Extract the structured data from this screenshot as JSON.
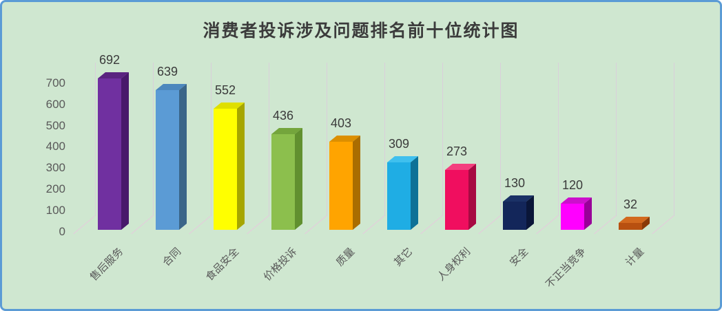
{
  "chart_data": {
    "type": "bar",
    "style": "3d-box-bars",
    "title": "消费者投诉涉及问题排名前十位统计图",
    "categories": [
      "售后服务",
      "合同",
      "食品安全",
      "价格投诉",
      "质量",
      "其它",
      "人身权利",
      "安全",
      "不正当竞争",
      "计量"
    ],
    "values": [
      692,
      639,
      552,
      436,
      403,
      309,
      273,
      130,
      120,
      32
    ],
    "xlabel": "",
    "ylabel": "",
    "ylim": [
      0,
      700
    ],
    "yticks": [
      0,
      100,
      200,
      300,
      400,
      500,
      600,
      700
    ],
    "legend": "none",
    "grid": "vertical category separator lines with 3d floor depth lines",
    "data_labels_shown": true,
    "category_label_rotation_deg": 45,
    "bar_colors": [
      {
        "name": "purple",
        "front": "#7030A0",
        "top": "#5A2480",
        "side": "#48196B"
      },
      {
        "name": "steel-blue",
        "front": "#5B9BD5",
        "top": "#4C87BD",
        "side": "#3A6588"
      },
      {
        "name": "yellow",
        "front": "#FFFF00",
        "top": "#DFDF00",
        "side": "#A6A600"
      },
      {
        "name": "green",
        "front": "#8CBF4D",
        "top": "#74A53C",
        "side": "#61902F"
      },
      {
        "name": "orange",
        "front": "#FFA400",
        "top": "#DC8F00",
        "side": "#AA6D00"
      },
      {
        "name": "sky-blue",
        "front": "#1FADE4",
        "top": "#3FC0EE",
        "side": "#0E7197"
      },
      {
        "name": "crimson",
        "front": "#F00E5F",
        "top": "#F43F7E",
        "side": "#A70A42"
      },
      {
        "name": "navy",
        "front": "#13265A",
        "top": "#1B3166",
        "side": "#0A1638"
      },
      {
        "name": "magenta",
        "front": "#FF00FF",
        "top": "#CC10CC",
        "side": "#990099"
      },
      {
        "name": "brown",
        "front": "#B85010",
        "top": "#D2691E",
        "side": "#8A3A08"
      }
    ],
    "colors": {
      "background": "#CFE7D0",
      "frame_border": "#5B9BD5",
      "title_text": "#3B3B3B",
      "axis_text": "#595959",
      "data_label_text": "#3A3A3A",
      "gridline": "#D9CFDA",
      "floor_line": "#E6CADD"
    }
  }
}
